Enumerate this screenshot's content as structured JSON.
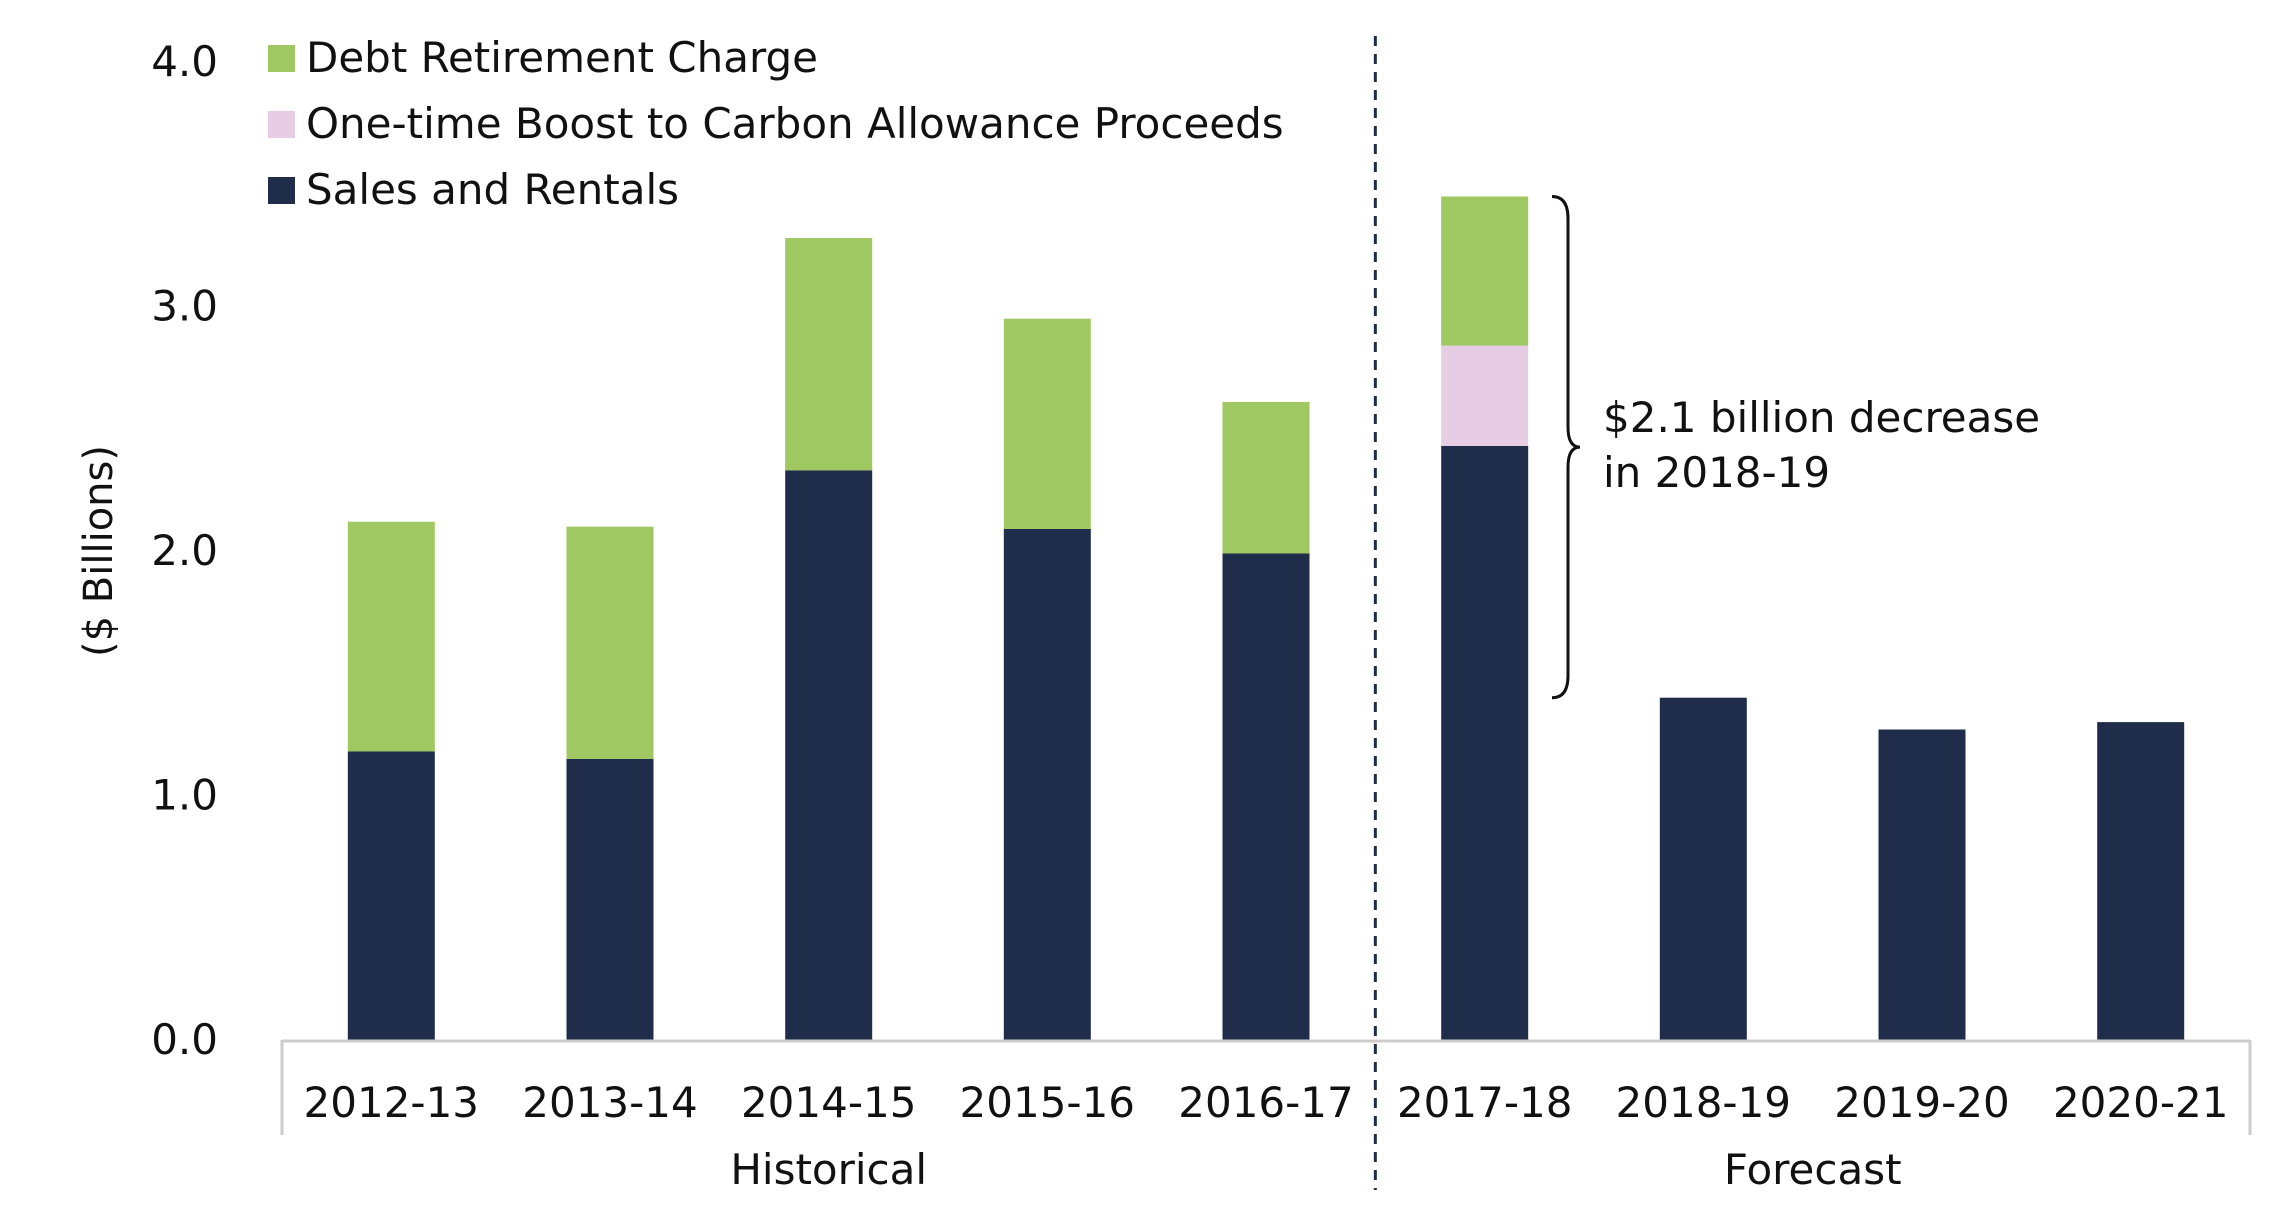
{
  "chart_data": {
    "type": "bar",
    "stacked": true,
    "ylabel": "($ Billions)",
    "ylim": [
      0,
      4
    ],
    "yticks": [
      "0.0",
      "1.0",
      "2.0",
      "3.0",
      "4.0"
    ],
    "categories": [
      "2012-13",
      "2013-14",
      "2014-15",
      "2015-16",
      "2016-17",
      "2017-18",
      "2018-19",
      "2019-20",
      "2020-21"
    ],
    "groups": [
      {
        "label": "Historical",
        "categories": [
          "2012-13",
          "2013-14",
          "2014-15",
          "2015-16",
          "2016-17"
        ]
      },
      {
        "label": "Forecast",
        "categories": [
          "2017-18",
          "2018-19",
          "2019-20",
          "2020-21"
        ]
      }
    ],
    "series": [
      {
        "name": "Sales and Rentals",
        "color": "#1f2d4a",
        "values": [
          1.18,
          1.15,
          2.33,
          2.09,
          1.99,
          2.43,
          1.4,
          1.27,
          1.3
        ]
      },
      {
        "name": "One-time Boost to Carbon Allowance Proceeds",
        "color": "#e6cde3",
        "values": [
          0,
          0,
          0,
          0,
          0,
          0.41,
          0,
          0,
          0
        ]
      },
      {
        "name": "Debt Retirement Charge",
        "color": "#9fc762",
        "values": [
          0.94,
          0.95,
          0.95,
          0.86,
          0.62,
          0.61,
          0,
          0,
          0
        ]
      }
    ],
    "legend": {
      "position": "top-left",
      "order": [
        "Debt Retirement Charge",
        "One-time Boost to Carbon Allowance Proceeds",
        "Sales and Rentals"
      ]
    },
    "annotation": {
      "lines": [
        "$2.1 billion decrease",
        "in 2018-19"
      ],
      "from": 3.45,
      "to": 1.4
    },
    "grid": false
  }
}
